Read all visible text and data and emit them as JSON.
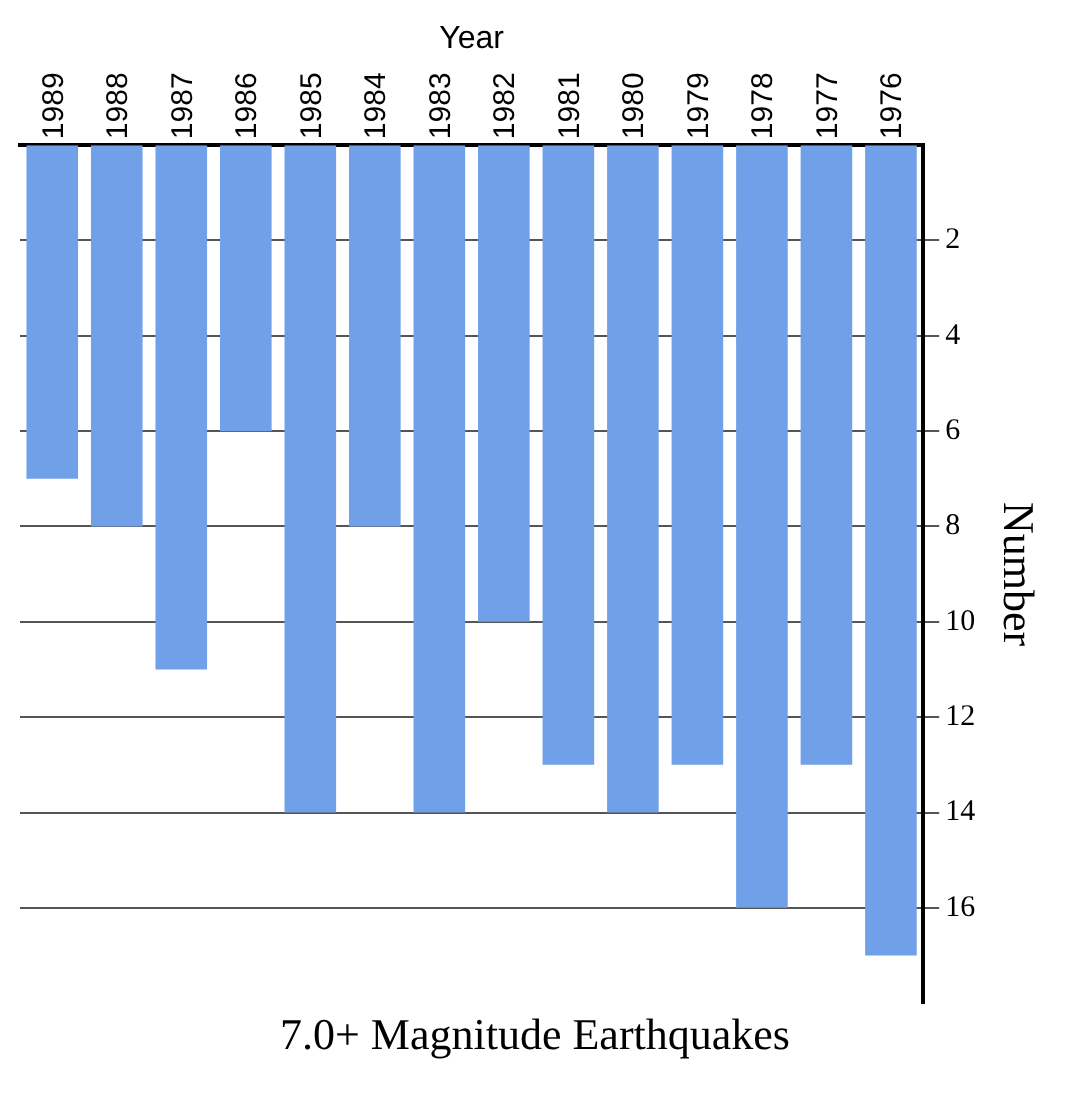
{
  "chart_data": {
    "type": "bar",
    "title": "7.0+ Magnitude Earthquakes",
    "xlabel": "Year",
    "ylabel": "Number",
    "categories": [
      "1989",
      "1988",
      "1987",
      "1986",
      "1985",
      "1984",
      "1983",
      "1982",
      "1981",
      "1980",
      "1979",
      "1978",
      "1977",
      "1976"
    ],
    "values": [
      7,
      8,
      11,
      6,
      14,
      8,
      14,
      10,
      13,
      14,
      13,
      16,
      13,
      17
    ],
    "color": "#6fa0e8",
    "ylim": [
      18,
      0
    ],
    "yticks": [
      2,
      4,
      6,
      8,
      10,
      12,
      14,
      16
    ],
    "grid": "y"
  }
}
